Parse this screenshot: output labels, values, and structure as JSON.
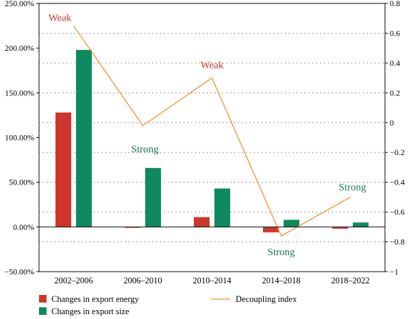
{
  "chart_data": {
    "type": "bar",
    "categories": [
      "2002–2006",
      "2006–2010",
      "2010–2014",
      "2014–2018",
      "2018–2022"
    ],
    "series": [
      {
        "name": "Changes in export energy",
        "type": "bar",
        "axis": "left",
        "color": "#d0352b",
        "values": [
          128,
          -1,
          11,
          -6,
          -2
        ]
      },
      {
        "name": "Changes in export size",
        "type": "bar",
        "axis": "left",
        "color": "#0d8a5e",
        "values": [
          198,
          66,
          43,
          8,
          5
        ]
      },
      {
        "name": "Decoupling index",
        "type": "line",
        "axis": "right",
        "color": "#f0922b",
        "values": [
          0.65,
          -0.02,
          0.3,
          -0.76,
          -0.5
        ]
      }
    ],
    "y_left": {
      "ylim": [
        -50,
        250
      ],
      "ticks": [
        -50,
        0,
        50,
        100,
        150,
        200,
        250
      ],
      "tick_labels": [
        "−50.00%",
        "0.00%",
        "50.00%",
        "100.00%",
        "150.00%",
        "200.00%",
        "250.00%"
      ]
    },
    "y_right": {
      "ylim": [
        -1,
        0.8
      ],
      "ticks": [
        -1,
        -0.8,
        -0.6,
        -0.4,
        -0.2,
        0,
        0.2,
        0.4,
        0.6,
        0.8
      ],
      "tick_labels": [
        "−1",
        "−0.8",
        "−0.6",
        "−0.4",
        "−0.2",
        "0",
        "0.2",
        "0.4",
        "0.6",
        "0.8"
      ]
    },
    "annotations": [
      {
        "text": "Weak",
        "category_index": 0,
        "color": "#d0352b"
      },
      {
        "text": "Strong",
        "category_index": 1,
        "color": "#1a7a52"
      },
      {
        "text": "Weak",
        "category_index": 2,
        "color": "#d0352b"
      },
      {
        "text": "Strong",
        "category_index": 3,
        "color": "#1a7a52"
      },
      {
        "text": "Strong",
        "category_index": 4,
        "color": "#1a7a52"
      }
    ],
    "grid": "dotted horizontal",
    "legend_position": "bottom"
  }
}
